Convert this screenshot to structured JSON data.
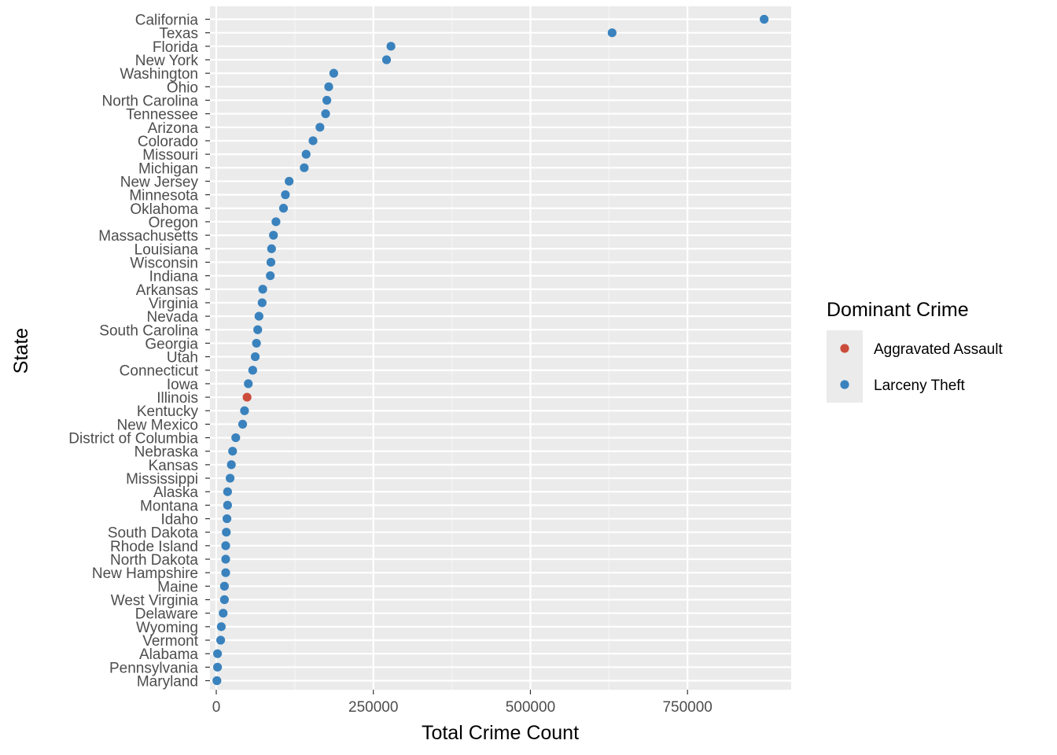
{
  "chart_data": {
    "type": "scatter",
    "title": "",
    "xlabel": "Total Crime Count",
    "ylabel": "State",
    "xlim": [
      -10000,
      915000
    ],
    "x_ticks": [
      0,
      250000,
      500000,
      750000
    ],
    "x_tick_labels": [
      "0",
      "250000",
      "500000",
      "750000"
    ],
    "grid": true,
    "legend": {
      "title": "Dominant Crime",
      "position": "right",
      "entries": [
        {
          "name": "Aggravated Assault",
          "color": "#cb4c3b"
        },
        {
          "name": "Larceny Theft",
          "color": "#3a82bd"
        }
      ]
    },
    "points": [
      {
        "state": "California",
        "value": 872000,
        "crime": "Larceny Theft"
      },
      {
        "state": "Texas",
        "value": 630000,
        "crime": "Larceny Theft"
      },
      {
        "state": "Florida",
        "value": 278000,
        "crime": "Larceny Theft"
      },
      {
        "state": "New York",
        "value": 271000,
        "crime": "Larceny Theft"
      },
      {
        "state": "Washington",
        "value": 187000,
        "crime": "Larceny Theft"
      },
      {
        "state": "Ohio",
        "value": 179000,
        "crime": "Larceny Theft"
      },
      {
        "state": "North Carolina",
        "value": 176000,
        "crime": "Larceny Theft"
      },
      {
        "state": "Tennessee",
        "value": 174000,
        "crime": "Larceny Theft"
      },
      {
        "state": "Arizona",
        "value": 165000,
        "crime": "Larceny Theft"
      },
      {
        "state": "Colorado",
        "value": 154000,
        "crime": "Larceny Theft"
      },
      {
        "state": "Missouri",
        "value": 143000,
        "crime": "Larceny Theft"
      },
      {
        "state": "Michigan",
        "value": 140000,
        "crime": "Larceny Theft"
      },
      {
        "state": "New Jersey",
        "value": 116000,
        "crime": "Larceny Theft"
      },
      {
        "state": "Minnesota",
        "value": 110000,
        "crime": "Larceny Theft"
      },
      {
        "state": "Oklahoma",
        "value": 107000,
        "crime": "Larceny Theft"
      },
      {
        "state": "Oregon",
        "value": 95000,
        "crime": "Larceny Theft"
      },
      {
        "state": "Massachusetts",
        "value": 91000,
        "crime": "Larceny Theft"
      },
      {
        "state": "Louisiana",
        "value": 88000,
        "crime": "Larceny Theft"
      },
      {
        "state": "Wisconsin",
        "value": 87000,
        "crime": "Larceny Theft"
      },
      {
        "state": "Indiana",
        "value": 86000,
        "crime": "Larceny Theft"
      },
      {
        "state": "Arkansas",
        "value": 74000,
        "crime": "Larceny Theft"
      },
      {
        "state": "Virginia",
        "value": 73000,
        "crime": "Larceny Theft"
      },
      {
        "state": "Nevada",
        "value": 68000,
        "crime": "Larceny Theft"
      },
      {
        "state": "South Carolina",
        "value": 66000,
        "crime": "Larceny Theft"
      },
      {
        "state": "Georgia",
        "value": 64000,
        "crime": "Larceny Theft"
      },
      {
        "state": "Utah",
        "value": 62000,
        "crime": "Larceny Theft"
      },
      {
        "state": "Connecticut",
        "value": 58000,
        "crime": "Larceny Theft"
      },
      {
        "state": "Iowa",
        "value": 51000,
        "crime": "Larceny Theft"
      },
      {
        "state": "Illinois",
        "value": 49000,
        "crime": "Aggravated Assault"
      },
      {
        "state": "Kentucky",
        "value": 45000,
        "crime": "Larceny Theft"
      },
      {
        "state": "New Mexico",
        "value": 42000,
        "crime": "Larceny Theft"
      },
      {
        "state": "District of Columbia",
        "value": 31000,
        "crime": "Larceny Theft"
      },
      {
        "state": "Nebraska",
        "value": 26000,
        "crime": "Larceny Theft"
      },
      {
        "state": "Kansas",
        "value": 24000,
        "crime": "Larceny Theft"
      },
      {
        "state": "Mississippi",
        "value": 22000,
        "crime": "Larceny Theft"
      },
      {
        "state": "Alaska",
        "value": 18000,
        "crime": "Larceny Theft"
      },
      {
        "state": "Montana",
        "value": 18000,
        "crime": "Larceny Theft"
      },
      {
        "state": "Idaho",
        "value": 17000,
        "crime": "Larceny Theft"
      },
      {
        "state": "South Dakota",
        "value": 16000,
        "crime": "Larceny Theft"
      },
      {
        "state": "Rhode Island",
        "value": 15000,
        "crime": "Larceny Theft"
      },
      {
        "state": "North Dakota",
        "value": 15000,
        "crime": "Larceny Theft"
      },
      {
        "state": "New Hampshire",
        "value": 15000,
        "crime": "Larceny Theft"
      },
      {
        "state": "Maine",
        "value": 13000,
        "crime": "Larceny Theft"
      },
      {
        "state": "West Virginia",
        "value": 13000,
        "crime": "Larceny Theft"
      },
      {
        "state": "Delaware",
        "value": 11000,
        "crime": "Larceny Theft"
      },
      {
        "state": "Wyoming",
        "value": 8000,
        "crime": "Larceny Theft"
      },
      {
        "state": "Vermont",
        "value": 7000,
        "crime": "Larceny Theft"
      },
      {
        "state": "Alabama",
        "value": 2000,
        "crime": "Larceny Theft"
      },
      {
        "state": "Pennsylvania",
        "value": 2000,
        "crime": "Larceny Theft"
      },
      {
        "state": "Maryland",
        "value": 1000,
        "crime": "Larceny Theft"
      }
    ]
  }
}
